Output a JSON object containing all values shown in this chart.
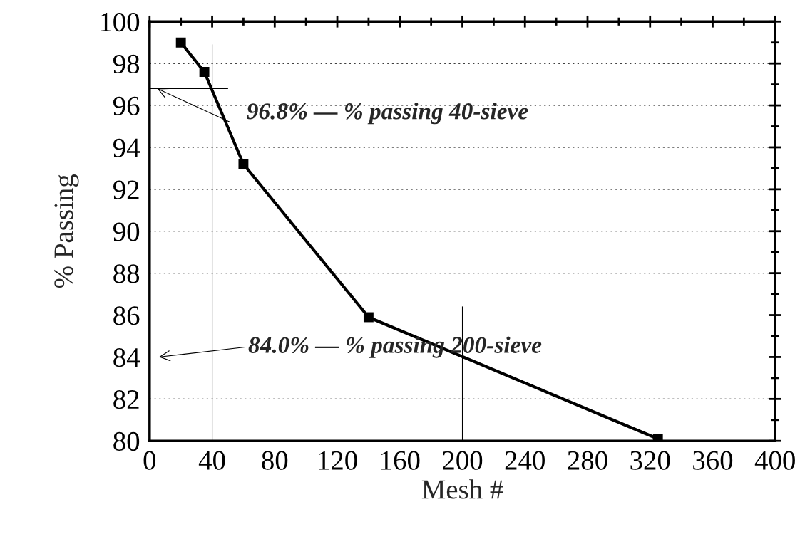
{
  "chart_data": {
    "type": "line",
    "xlabel": "Mesh #",
    "ylabel": "% Passing",
    "x": [
      20,
      35,
      60,
      140,
      325
    ],
    "series": [
      {
        "color": "#000000",
        "values": [
          99.0,
          97.6,
          93.2,
          85.9,
          80.1
        ],
        "marker": "square",
        "line_style": "solid"
      },
      {
        "color": "#000000",
        "x": [
          40,
          40
        ],
        "values": [
          80,
          98.9
        ],
        "marker": "none",
        "line_style": "solid"
      },
      {
        "color": "#000000",
        "x": [
          0,
          50
        ],
        "values": [
          96.8,
          96.8
        ],
        "marker": "none",
        "line_style": "solid"
      },
      {
        "color": "#000000",
        "x": [
          200,
          200
        ],
        "values": [
          80,
          86.4
        ],
        "marker": "none",
        "line_style": "solid"
      },
      {
        "color": "#000000",
        "x": [
          0,
          225
        ],
        "values": [
          84.0,
          84.0
        ],
        "marker": "none",
        "line_style": "solid"
      }
    ],
    "annotations": [
      {
        "text": "96.8% — % passing 40-sieve",
        "x": 5,
        "y": 96.8
      },
      {
        "text": "84.0% — % passing 200-sieve",
        "x": 6,
        "y": 84.0
      }
    ],
    "xlim": [
      0,
      400
    ],
    "xticks": [
      0,
      40,
      80,
      120,
      160,
      200,
      240,
      280,
      320,
      360,
      400
    ],
    "ylim": [
      80,
      100
    ],
    "yticks": [
      80,
      82,
      84,
      86,
      88,
      90,
      92,
      94,
      96,
      98,
      100
    ],
    "grid": "y",
    "legend": false
  }
}
